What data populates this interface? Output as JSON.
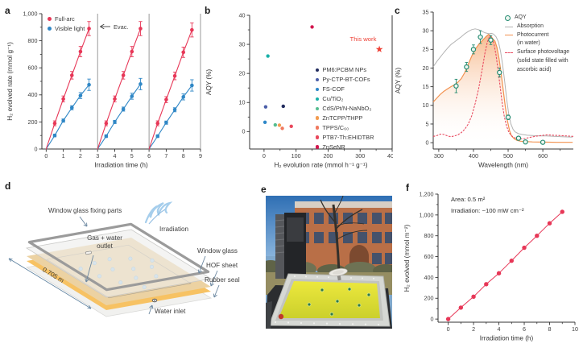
{
  "figure": {
    "background": "#ffffff"
  },
  "panel_a": {
    "letter": "a",
    "evac_label": "Evac.",
    "legend": [
      {
        "label": "Full-arc",
        "color": "#e73757"
      },
      {
        "label": "Visible light",
        "color": "#2f87c6"
      }
    ],
    "chart_data": {
      "type": "line",
      "xlabel": "Irradiation time (h)",
      "ylabel": "H₂ evolved rate (mmol g⁻¹)",
      "xlim": [
        -0.25,
        9
      ],
      "ylim": [
        0,
        1000
      ],
      "xticks": [
        0,
        1,
        2,
        3,
        4,
        5,
        6,
        7,
        8,
        9
      ],
      "yticks": [
        0,
        200,
        400,
        600,
        800,
        1000
      ],
      "yticklabels": [
        "0",
        "200",
        "400",
        "600",
        "800",
        "1,000"
      ],
      "minor_yticks": [
        100,
        300,
        500,
        700,
        900
      ],
      "separators": [
        3,
        6,
        9
      ],
      "offsets": [
        0.5,
        1,
        1.5,
        2,
        2.5
      ],
      "segments": [
        {
          "start": 0,
          "full_arc": [
            190,
            370,
            545,
            720,
            890
          ],
          "visible_light": [
            100,
            210,
            305,
            395,
            475
          ]
        },
        {
          "start": 3,
          "full_arc": [
            190,
            370,
            545,
            720,
            890
          ],
          "visible_light": [
            95,
            200,
            295,
            390,
            480
          ]
        },
        {
          "start": 6,
          "full_arc": [
            190,
            365,
            540,
            715,
            880
          ],
          "visible_light": [
            95,
            195,
            290,
            385,
            470
          ]
        }
      ],
      "full_arc_errors": [
        18,
        22,
        28,
        38,
        52
      ],
      "visible_light_errors": [
        10,
        12,
        15,
        22,
        42
      ],
      "colors": {
        "full_arc": "#e73757",
        "visible_light": "#2f87c6"
      }
    }
  },
  "panel_b": {
    "letter": "b",
    "this_work_label": "This work",
    "chart_data": {
      "type": "scatter",
      "xlabel": "H₂ evolution rate (mmol h⁻¹ g⁻¹)",
      "ylabel": "AQY (%)",
      "xlim": [
        -45,
        400
      ],
      "ylim": [
        -6,
        40
      ],
      "xticks": [
        0,
        100,
        200,
        300,
        400
      ],
      "yticks": [
        0,
        10,
        20,
        30,
        40
      ],
      "minor_xticks": [
        50,
        150,
        250,
        350
      ],
      "minor_yticks": [
        5,
        15,
        25,
        35
      ],
      "points": [
        {
          "label": "PM6:PCBM NPs",
          "x": 60,
          "y": 8.7,
          "color": "#222c5e"
        },
        {
          "label": "Py-CTP-BT-COFs",
          "x": 5,
          "y": 8.5,
          "color": "#4b5ea8"
        },
        {
          "label": "FS-COF",
          "x": 3,
          "y": 3.2,
          "color": "#2d87c8"
        },
        {
          "label": "Cu/TiO₂",
          "x": 12,
          "y": 26,
          "color": "#18b0a8"
        },
        {
          "label": "CdS/Pt/N-NaNbO₃",
          "x": 35,
          "y": 2.3,
          "color": "#56bd90"
        },
        {
          "label": "ZnTCPP/THPP",
          "x": 48,
          "y": 2.2,
          "color": "#f39c50"
        },
        {
          "label": "TPPS/C₆₀",
          "x": 57,
          "y": 1.1,
          "color": "#f0795e"
        },
        {
          "label": "PTB7-Th:EHIDTBR",
          "x": 85,
          "y": 1.8,
          "color": "#e9485c"
        },
        {
          "label": "ZnSeNR",
          "x": 150,
          "y": 36,
          "color": "#d2164e"
        }
      ],
      "this_work": {
        "label": "This work",
        "x": 360,
        "y": 28.3,
        "color": "#ee4035"
      }
    }
  },
  "panel_c": {
    "letter": "c",
    "chart_data": {
      "type": "line",
      "xlabel": "Wavelength (nm)",
      "ylabel": "AQY (%)",
      "xlim": [
        284,
        688
      ],
      "ylim": [
        -1.7,
        35
      ],
      "xticks": [
        300,
        400,
        500,
        600
      ],
      "yticks": [
        0,
        5,
        10,
        15,
        20,
        25,
        30,
        35
      ],
      "minor_xticks": [
        350,
        450,
        550,
        650
      ],
      "aqy_points": {
        "color": "#268c72",
        "x": [
          350,
          380,
          400,
          420,
          450,
          475,
          500,
          530,
          550,
          600
        ],
        "y": [
          15.2,
          20.3,
          25.0,
          28.3,
          27.5,
          18.8,
          6.8,
          1.2,
          0.2,
          0.1
        ],
        "err": [
          1.8,
          1.2,
          1.2,
          1.7,
          1.2,
          1.2,
          0.6,
          0.4,
          0.2,
          0.2
        ]
      },
      "absorption": {
        "color": "#b3b3b3",
        "pts": [
          [
            285,
            20.5
          ],
          [
            295,
            21.8
          ],
          [
            305,
            23
          ],
          [
            315,
            24.2
          ],
          [
            325,
            25.3
          ],
          [
            335,
            26.3
          ],
          [
            345,
            27
          ],
          [
            355,
            27.7
          ],
          [
            365,
            28.4
          ],
          [
            375,
            29.2
          ],
          [
            385,
            29.8
          ],
          [
            395,
            30.3
          ],
          [
            405,
            30.5
          ],
          [
            415,
            30.3
          ],
          [
            425,
            29.8
          ],
          [
            435,
            29.4
          ],
          [
            445,
            29.2
          ],
          [
            452,
            29.3
          ],
          [
            458,
            29.1
          ],
          [
            465,
            28.4
          ],
          [
            472,
            27
          ],
          [
            478,
            24.5
          ],
          [
            484,
            21
          ],
          [
            490,
            16.5
          ],
          [
            496,
            11.5
          ],
          [
            502,
            7.5
          ],
          [
            508,
            5
          ],
          [
            514,
            3.6
          ],
          [
            520,
            2.9
          ],
          [
            530,
            2.4
          ],
          [
            540,
            2.2
          ],
          [
            555,
            2
          ],
          [
            570,
            1.9
          ],
          [
            590,
            1.8
          ],
          [
            610,
            1.8
          ],
          [
            630,
            1.7
          ],
          [
            655,
            1.6
          ],
          [
            685,
            1.5
          ]
        ]
      },
      "photocurrent": {
        "color": "#f2914f",
        "fill_top": "#f4a469",
        "pts": [
          [
            285,
            11
          ],
          [
            295,
            12
          ],
          [
            305,
            13
          ],
          [
            315,
            13.8
          ],
          [
            325,
            14.4
          ],
          [
            335,
            15
          ],
          [
            345,
            15.5
          ],
          [
            355,
            16.2
          ],
          [
            365,
            17.2
          ],
          [
            375,
            18.8
          ],
          [
            385,
            21
          ],
          [
            395,
            23.2
          ],
          [
            405,
            25
          ],
          [
            415,
            26.3
          ],
          [
            425,
            27.3
          ],
          [
            435,
            28.3
          ],
          [
            443,
            29
          ],
          [
            450,
            28.6
          ],
          [
            456,
            27.8
          ],
          [
            462,
            27.2
          ],
          [
            468,
            25.5
          ],
          [
            474,
            22.5
          ],
          [
            480,
            18.5
          ],
          [
            486,
            14
          ],
          [
            492,
            9.5
          ],
          [
            498,
            5.8
          ],
          [
            504,
            3.2
          ],
          [
            510,
            1.8
          ],
          [
            518,
            1
          ],
          [
            526,
            0.6
          ],
          [
            536,
            0.4
          ],
          [
            550,
            0.3
          ],
          [
            570,
            0.2
          ],
          [
            600,
            0.15
          ],
          [
            640,
            0.1
          ],
          [
            685,
            0.1
          ]
        ]
      },
      "surface_photovoltage": {
        "color": "#e84a5f",
        "pts": [
          [
            285,
            1.7
          ],
          [
            295,
            1.9
          ],
          [
            305,
            2.3
          ],
          [
            315,
            2.2
          ],
          [
            325,
            1.8
          ],
          [
            335,
            1.6
          ],
          [
            345,
            1.8
          ],
          [
            355,
            2.1
          ],
          [
            365,
            2.7
          ],
          [
            375,
            3.6
          ],
          [
            385,
            5
          ],
          [
            395,
            7.2
          ],
          [
            405,
            10.5
          ],
          [
            415,
            14.5
          ],
          [
            425,
            19.5
          ],
          [
            433,
            24
          ],
          [
            440,
            27
          ],
          [
            447,
            28.6
          ],
          [
            453,
            28.2
          ],
          [
            459,
            26.5
          ],
          [
            465,
            23.5
          ],
          [
            471,
            19.5
          ],
          [
            477,
            15
          ],
          [
            483,
            10.5
          ],
          [
            489,
            7
          ],
          [
            495,
            4.6
          ],
          [
            501,
            3
          ],
          [
            508,
            2
          ],
          [
            516,
            1.4
          ],
          [
            525,
            1.1
          ],
          [
            535,
            1
          ],
          [
            548,
            1.1
          ],
          [
            562,
            1.4
          ],
          [
            578,
            1.7
          ],
          [
            595,
            1.9
          ],
          [
            612,
            2.1
          ],
          [
            630,
            2
          ],
          [
            650,
            1.9
          ],
          [
            670,
            1.8
          ],
          [
            688,
            1.7
          ]
        ]
      },
      "legend": [
        {
          "marker": "circle",
          "color": "#268c72",
          "lines": [
            "AQY"
          ]
        },
        {
          "marker": "line",
          "color": "#b3b3b3",
          "lines": [
            "Absorption"
          ]
        },
        {
          "marker": "line",
          "color": "#f2914f",
          "lines": [
            "Photocurrent",
            "(in water)"
          ]
        },
        {
          "marker": "dash",
          "color": "#e84a5f",
          "lines": [
            "Surface photovoltage",
            "(solid state filled with",
            "ascorbic acid)"
          ]
        }
      ]
    }
  },
  "panel_d": {
    "letter": "d",
    "labels": {
      "fixing_parts": "Window glass fixing parts",
      "irradiation": "Irradiation",
      "outlet_line1": "Gas + water",
      "outlet_line2": "outlet",
      "window_glass": "Window glass",
      "hof_sheet": "HOF sheet",
      "rubber_seal": "Rubber seal",
      "water_inlet": "Water inlet",
      "dimension": "0.705 m"
    },
    "colors": {
      "sheet": "#ecd2a2",
      "sheet_edge": "#f7c263",
      "frame": "#9b9b9b",
      "glass": "#ebebe9",
      "droplet": "#b5d6ec"
    }
  },
  "panel_e": {
    "letter": "e"
  },
  "panel_f": {
    "letter": "f",
    "annotation": {
      "area": "Area: 0.5 m²",
      "irradiation": "Irradiation: ~100 mW cm⁻²"
    },
    "chart_data": {
      "type": "line",
      "xlabel": "Irradiation time (h)",
      "ylabel": "H₂ evolved (mmol m⁻²)",
      "xlim": [
        -0.8,
        10
      ],
      "ylim": [
        -30,
        1200
      ],
      "xticks": [
        0,
        2,
        4,
        6,
        8,
        10
      ],
      "yticks": [
        0,
        200,
        400,
        600,
        800,
        1000,
        1200
      ],
      "yticklabels": [
        "0",
        "200",
        "400",
        "600",
        "800",
        "1,000",
        "1,200"
      ],
      "minor_xticks": [
        1,
        3,
        5,
        7,
        9
      ],
      "minor_yticks": [
        100,
        300,
        500,
        700,
        900,
        1100
      ],
      "x": [
        0,
        1,
        2,
        3,
        4,
        5,
        6,
        7,
        8,
        9
      ],
      "y": [
        0,
        110,
        215,
        335,
        440,
        560,
        685,
        800,
        920,
        1030
      ],
      "color": "#e73757"
    }
  }
}
